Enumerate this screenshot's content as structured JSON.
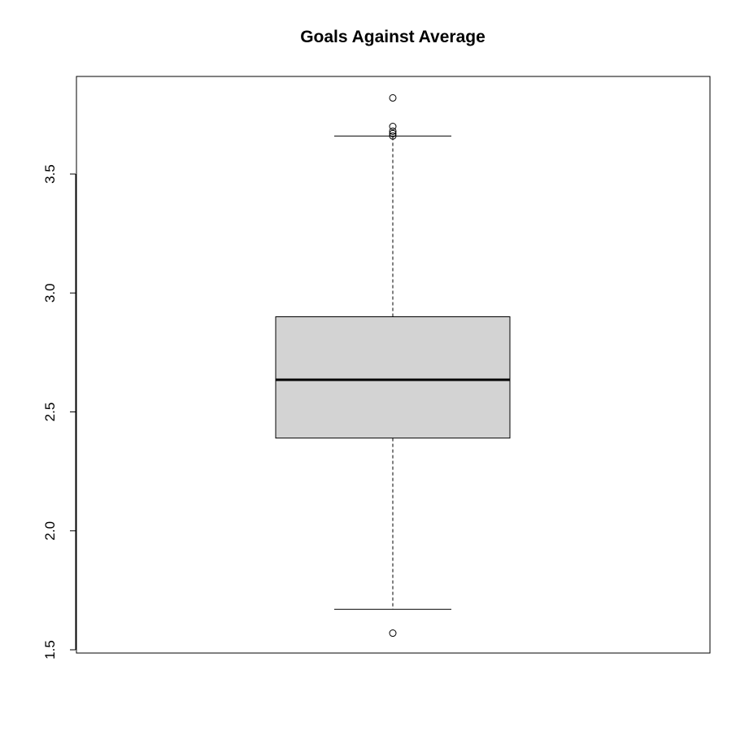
{
  "chart_data": {
    "type": "boxplot",
    "title": "Goals Against Average",
    "xlabel": "",
    "ylabel": "",
    "ylim": [
      1.48,
      3.9
    ],
    "yticks": [
      1.5,
      2.0,
      2.5,
      3.0,
      3.5
    ],
    "ytick_labels": [
      "1.5",
      "2.0",
      "2.5",
      "3.0",
      "3.5"
    ],
    "grid": false,
    "box": {
      "whisker_low": 1.67,
      "q1": 2.39,
      "median": 2.635,
      "q3": 2.9,
      "whisker_high": 3.66
    },
    "outliers": [
      1.57,
      3.66,
      3.67,
      3.68,
      3.7,
      3.82
    ],
    "box_fill": "#d3d3d3"
  }
}
